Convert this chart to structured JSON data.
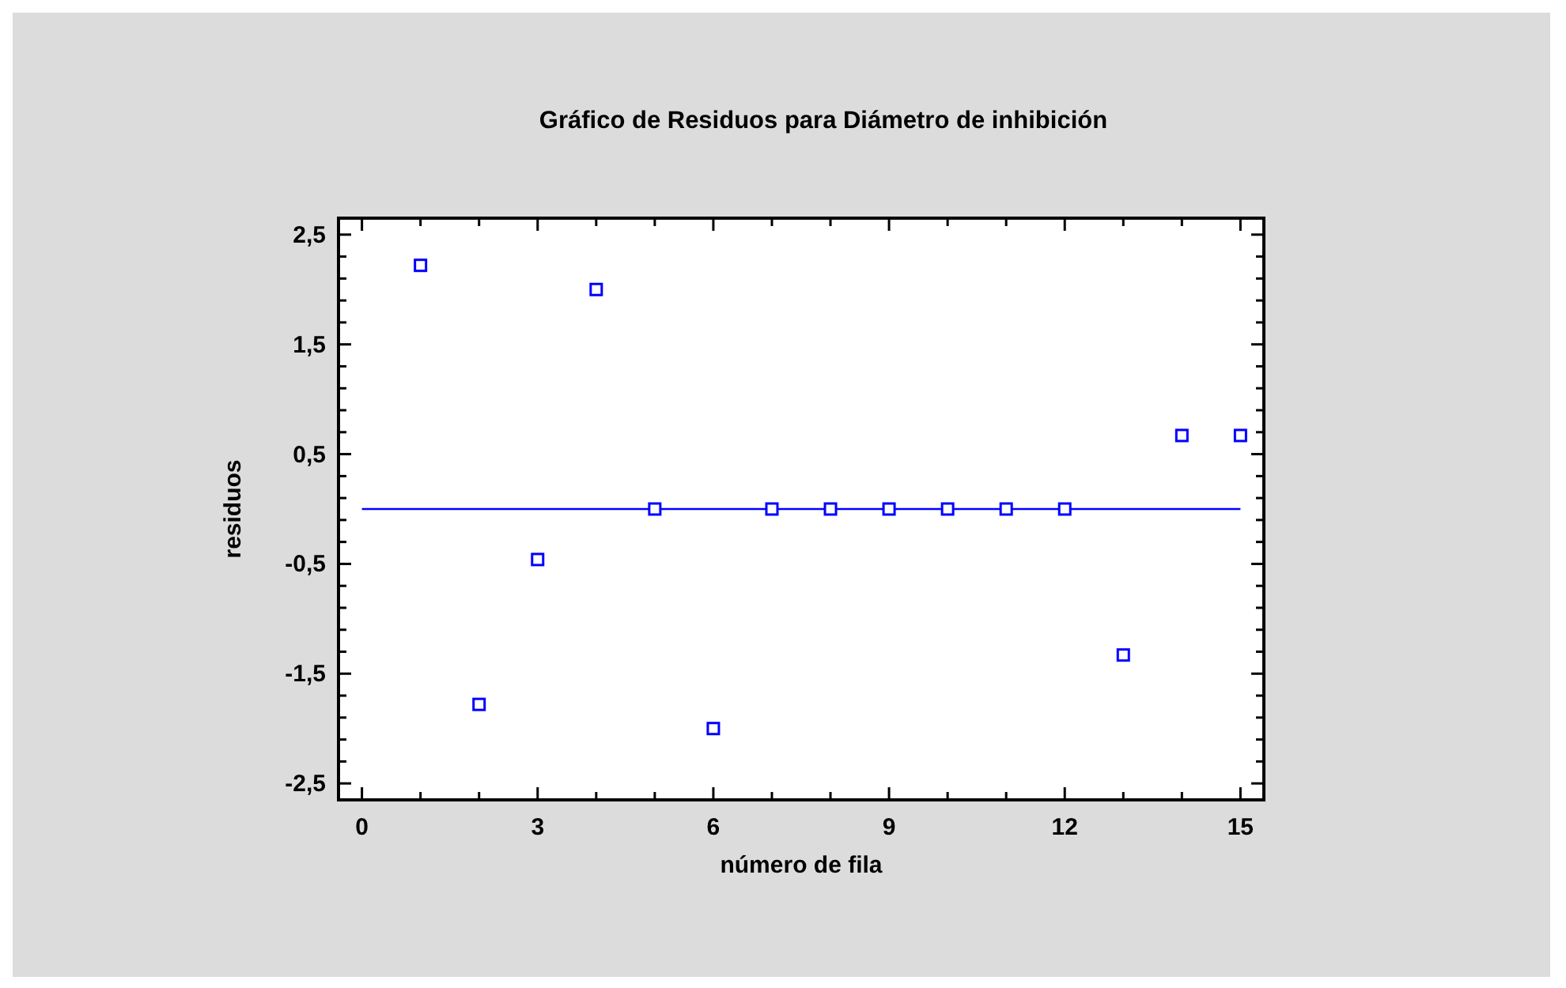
{
  "chart_data": {
    "type": "scatter",
    "title": "Gráfico de Residuos para Diámetro de inhibición",
    "xlabel": "número de fila",
    "ylabel": "residuos",
    "xlim": [
      -0.4,
      15.4
    ],
    "ylim": [
      -2.65,
      2.65
    ],
    "xticks": [
      0,
      {
        "value": 1,
        "label": null
      },
      {
        "value": 2,
        "label": null
      },
      3,
      {
        "value": 4,
        "label": null
      },
      {
        "value": 5,
        "label": null
      },
      6,
      {
        "value": 7,
        "label": null
      },
      {
        "value": 8,
        "label": null
      },
      9,
      {
        "value": 10,
        "label": null
      },
      {
        "value": 11,
        "label": null
      },
      12,
      {
        "value": 13,
        "label": null
      },
      {
        "value": 14,
        "label": null
      },
      15
    ],
    "yticks": [
      {
        "value": -2.5,
        "label": "-2,5"
      },
      {
        "value": -2.3,
        "label": null
      },
      {
        "value": -2.1,
        "label": null
      },
      {
        "value": -1.9,
        "label": null
      },
      {
        "value": -1.7,
        "label": null
      },
      {
        "value": -1.5,
        "label": "-1,5"
      },
      {
        "value": -1.3,
        "label": null
      },
      {
        "value": -1.1,
        "label": null
      },
      {
        "value": -0.9,
        "label": null
      },
      {
        "value": -0.7,
        "label": null
      },
      {
        "value": -0.5,
        "label": "-0,5"
      },
      {
        "value": -0.3,
        "label": null
      },
      {
        "value": -0.1,
        "label": null
      },
      {
        "value": 0.1,
        "label": null
      },
      {
        "value": 0.3,
        "label": null
      },
      {
        "value": 0.5,
        "label": "0,5"
      },
      {
        "value": 0.7,
        "label": null
      },
      {
        "value": 0.9,
        "label": null
      },
      {
        "value": 1.1,
        "label": null
      },
      {
        "value": 1.3,
        "label": null
      },
      {
        "value": 1.5,
        "label": "1,5"
      },
      {
        "value": 1.7,
        "label": null
      },
      {
        "value": 1.9,
        "label": null
      },
      {
        "value": 2.1,
        "label": null
      },
      {
        "value": 2.3,
        "label": null
      },
      {
        "value": 2.5,
        "label": "2,5"
      }
    ],
    "grid": false,
    "series": [
      {
        "marker": "square",
        "color": "#0000ff",
        "x": [
          1,
          2,
          3,
          4,
          5,
          6,
          7,
          8,
          9,
          10,
          11,
          12,
          13,
          14,
          15
        ],
        "values": [
          2.22,
          -1.78,
          -0.46,
          2.0,
          0,
          -2.0,
          0,
          0,
          0,
          0,
          0,
          0,
          -1.33,
          0.67,
          0.67
        ]
      },
      {
        "type": "line",
        "color": "#0000ff",
        "x": [
          0,
          15
        ],
        "values": [
          0,
          0
        ]
      }
    ]
  }
}
